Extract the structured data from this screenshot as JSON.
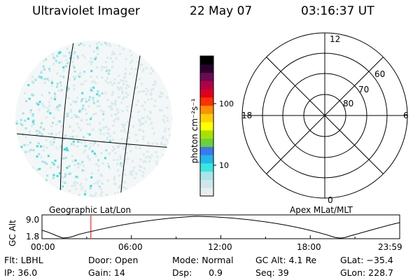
{
  "header": {
    "instrument": "Ultraviolet Imager",
    "date": "22 May 07",
    "time": "03:16:37 UT"
  },
  "image_panel": {
    "label": "Geographic Lat/Lon"
  },
  "colorbar": {
    "label": "photon cm⁻²s⁻¹",
    "ticks": [
      {
        "value": 10,
        "label": "10"
      },
      {
        "value": 100,
        "label": "100"
      }
    ],
    "colors": [
      "#e8eef0",
      "#cfe6ea",
      "#a8e4e8",
      "#38e8e0",
      "#22b8e8",
      "#3a7af0",
      "#6cd038",
      "#a8e000",
      "#ffff00",
      "#ffd000",
      "#ff9000",
      "#ff3000",
      "#e00020",
      "#b00048",
      "#6a0a50",
      "#2a0030",
      "#000000"
    ]
  },
  "polar_plot": {
    "label": "Apex MLat/MLT",
    "mlt_labels": {
      "top": "12",
      "left": "18",
      "right": "6",
      "bottom": "0"
    },
    "lat_rings": [
      "60",
      "70",
      "80"
    ]
  },
  "altitude_plot": {
    "ylabel": "GC Alt",
    "yticks": [
      "9.0",
      "1.8"
    ],
    "xticks": [
      "00:00",
      "06:00",
      "12:00",
      "18:00",
      "23:59"
    ],
    "current_marker_hours": 3.28,
    "marker_color": "#dd0000"
  },
  "status": {
    "filter": "Flt: LBHL",
    "ip": "IP: 36.0",
    "door": "Door: Open",
    "gain": "Gain: 14",
    "mode": "Mode: Normal",
    "dsp": "Dsp:      0.9",
    "gc_alt": "GC Alt: 4.1 Re",
    "seq": "Seq: 39",
    "glat": "GLat: −35.4",
    "glon": "GLon: 228.7"
  }
}
